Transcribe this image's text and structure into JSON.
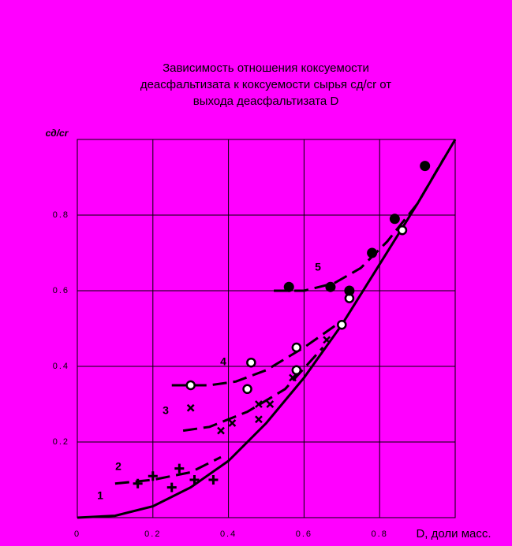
{
  "chart_data": {
    "type": "scatter",
    "title": [
      "Зависимость отношения коксуемости",
      "деасфальтизата к коксуемости сырья cд/cr от",
      "выхода деасфальтизата D"
    ],
    "x_label": "D, доли масс.",
    "y_label": "cд/cr",
    "xlim": [
      0,
      1
    ],
    "ylim": [
      0,
      1
    ],
    "xticks": [
      0,
      0.2,
      0.4,
      0.6,
      0.8
    ],
    "yticks": [
      0.2,
      0.4,
      0.6,
      0.8
    ],
    "grid": true,
    "background": "#ff00ff",
    "color": "#000000",
    "series": [
      {
        "name": "1",
        "kind": "line",
        "dash": false,
        "x": [
          0,
          0.1,
          0.2,
          0.3,
          0.4,
          0.5,
          0.6,
          0.7,
          0.8,
          0.9,
          1.0
        ],
        "values": [
          0,
          0.005,
          0.03,
          0.08,
          0.15,
          0.25,
          0.37,
          0.51,
          0.67,
          0.83,
          1.0
        ]
      },
      {
        "name": "2",
        "kind": "line",
        "dash": true,
        "x": [
          0.1,
          0.2,
          0.3,
          0.38
        ],
        "values": [
          0.09,
          0.1,
          0.12,
          0.16
        ]
      },
      {
        "name": "3",
        "kind": "line",
        "dash": true,
        "x": [
          0.28,
          0.35,
          0.45,
          0.55,
          0.65
        ],
        "values": [
          0.23,
          0.24,
          0.28,
          0.34,
          0.45
        ]
      },
      {
        "name": "4",
        "kind": "line",
        "dash": true,
        "x": [
          0.25,
          0.35,
          0.42,
          0.5,
          0.6,
          0.7
        ],
        "values": [
          0.35,
          0.35,
          0.36,
          0.39,
          0.45,
          0.52
        ]
      },
      {
        "name": "5",
        "kind": "line",
        "dash": true,
        "x": [
          0.52,
          0.6,
          0.68,
          0.75,
          0.82,
          0.9,
          0.97
        ],
        "values": [
          0.6,
          0.6,
          0.62,
          0.66,
          0.73,
          0.83,
          0.95
        ]
      },
      {
        "kind": "scatter",
        "marker": "plus",
        "x": [
          0.16,
          0.2,
          0.25,
          0.27,
          0.31,
          0.36
        ],
        "values": [
          0.09,
          0.11,
          0.08,
          0.13,
          0.1,
          0.1
        ]
      },
      {
        "kind": "scatter",
        "marker": "cross",
        "x": [
          0.3,
          0.38,
          0.41,
          0.48,
          0.48,
          0.51,
          0.57,
          0.66
        ],
        "values": [
          0.29,
          0.23,
          0.25,
          0.3,
          0.26,
          0.3,
          0.37,
          0.47
        ]
      },
      {
        "kind": "scatter",
        "marker": "open",
        "x": [
          0.3,
          0.45,
          0.46,
          0.58,
          0.58,
          0.7,
          0.72,
          0.86
        ],
        "values": [
          0.35,
          0.34,
          0.41,
          0.39,
          0.45,
          0.51,
          0.58,
          0.76
        ]
      },
      {
        "kind": "scatter",
        "marker": "filled",
        "x": [
          0.56,
          0.67,
          0.72,
          0.78,
          0.84,
          0.92
        ],
        "values": [
          0.61,
          0.61,
          0.6,
          0.7,
          0.79,
          0.93
        ]
      }
    ]
  }
}
